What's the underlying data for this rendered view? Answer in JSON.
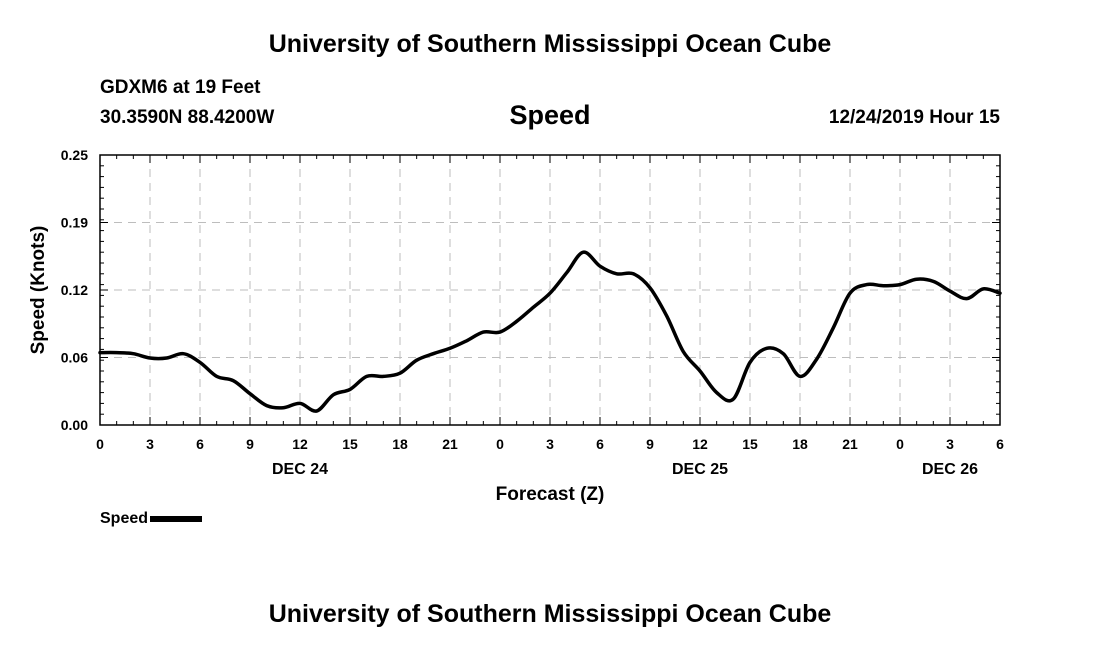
{
  "header": {
    "top_title": "University of Southern Mississippi Ocean Cube",
    "station": "GDXM6 at 19 Feet",
    "coords": "30.3590N 88.4200W",
    "plot_title": "Speed",
    "datetime": "12/24/2019 Hour 15"
  },
  "footer": {
    "bottom_title": "University of Southern Mississippi Ocean Cube"
  },
  "legend": {
    "label": "Speed",
    "color": "#000000"
  },
  "chart_data": {
    "type": "line",
    "title": "Speed",
    "xlabel": "Forecast (Z)",
    "ylabel": "Speed (Knots)",
    "xlim": [
      0,
      54
    ],
    "ylim": [
      0,
      0.25
    ],
    "yticks": [
      "0.00",
      "0.06",
      "0.12",
      "0.19",
      "0.25"
    ],
    "xticks": [
      "0",
      "3",
      "6",
      "9",
      "12",
      "15",
      "18",
      "21",
      "0",
      "3",
      "6",
      "9",
      "12",
      "15",
      "18",
      "21",
      "0",
      "3",
      "6"
    ],
    "day_labels": [
      {
        "label": "DEC 24",
        "hour": 12
      },
      {
        "label": "DEC 25",
        "hour": 36
      },
      {
        "label": "DEC 26",
        "hour": 51
      }
    ],
    "grid": true,
    "series": [
      {
        "name": "Speed",
        "color": "#000000",
        "x": [
          0,
          1,
          2,
          3,
          4,
          5,
          6,
          7,
          8,
          9,
          10,
          11,
          12,
          13,
          14,
          15,
          16,
          17,
          18,
          19,
          20,
          21,
          22,
          23,
          24,
          25,
          26,
          27,
          28,
          29,
          30,
          31,
          32,
          33,
          34,
          35,
          36,
          37,
          38,
          39,
          40,
          41,
          42,
          43,
          44,
          45,
          46,
          47,
          48,
          49,
          50,
          51,
          52,
          53,
          54
        ],
        "values": [
          0.067,
          0.067,
          0.066,
          0.062,
          0.062,
          0.066,
          0.058,
          0.045,
          0.041,
          0.029,
          0.018,
          0.016,
          0.02,
          0.013,
          0.028,
          0.033,
          0.045,
          0.045,
          0.048,
          0.06,
          0.066,
          0.071,
          0.078,
          0.086,
          0.086,
          0.096,
          0.109,
          0.122,
          0.141,
          0.16,
          0.147,
          0.14,
          0.14,
          0.127,
          0.101,
          0.068,
          0.05,
          0.03,
          0.024,
          0.058,
          0.071,
          0.066,
          0.045,
          0.061,
          0.09,
          0.122,
          0.13,
          0.129,
          0.13,
          0.135,
          0.133,
          0.124,
          0.117,
          0.126,
          0.122
        ]
      }
    ]
  }
}
